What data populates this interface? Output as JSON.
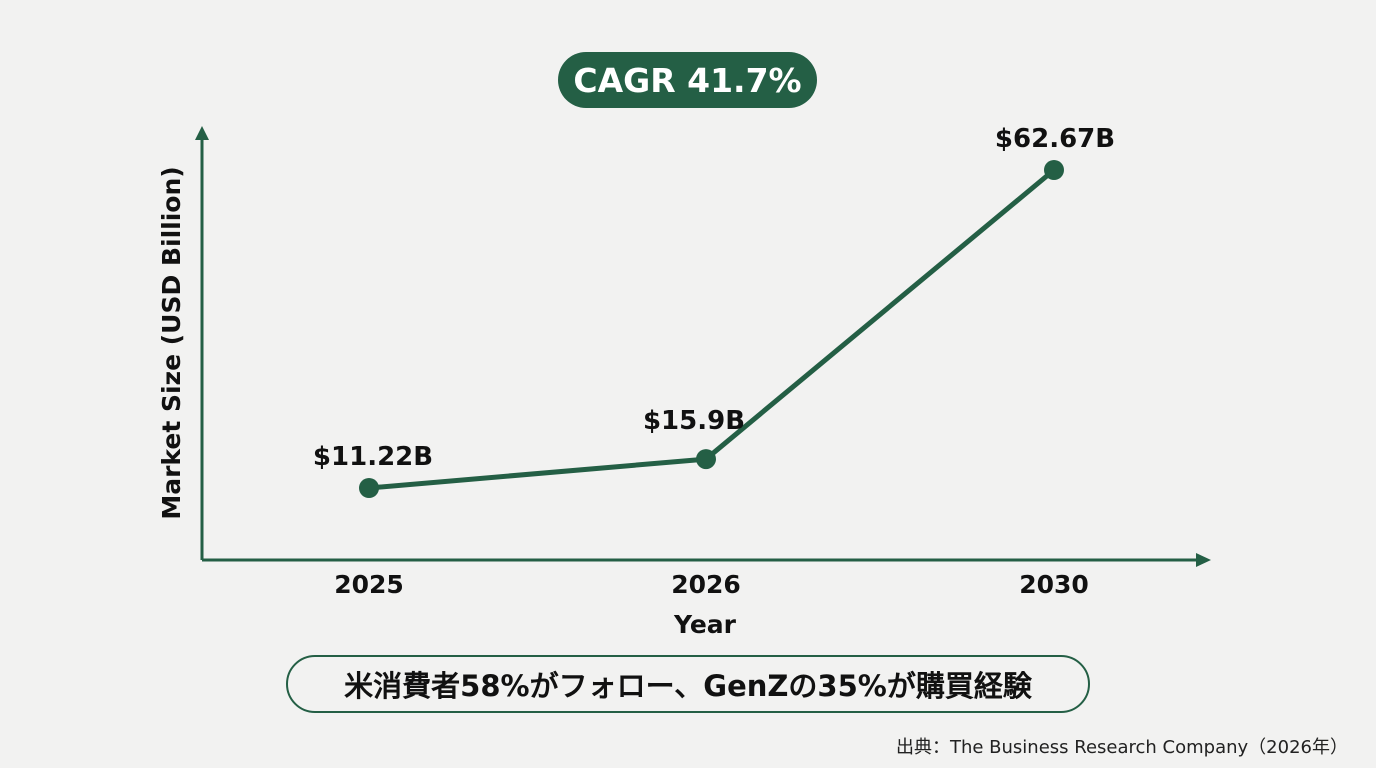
{
  "badge": {
    "cagr_label": "CAGR 41.7%"
  },
  "chart_data": {
    "type": "line",
    "title": "",
    "xlabel": "Year",
    "ylabel": "Market Size (USD Billion)",
    "categories": [
      "2025",
      "2026",
      "2030"
    ],
    "x": [
      2025,
      2026,
      2030
    ],
    "values": [
      11.22,
      15.9,
      62.67
    ],
    "data_labels": [
      "$11.22B",
      "$15.9B",
      "$62.67B"
    ],
    "grid": false,
    "legend": "none",
    "colors": {
      "series": "#245f45",
      "axis": "#245f45"
    }
  },
  "headline": {
    "text": "米消費者58%がフォロー、GenZの35%が購買経験"
  },
  "footer": {
    "source": "出典：The Business Research Company（2026年）"
  }
}
